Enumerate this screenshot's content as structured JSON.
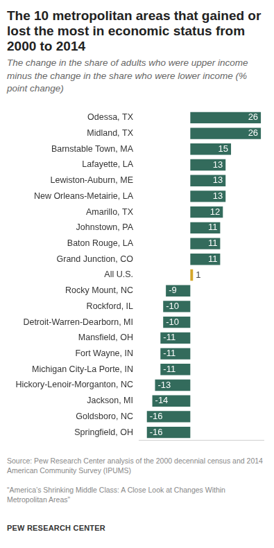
{
  "chart_data": {
    "type": "bar",
    "orientation": "horizontal",
    "title": "The 10 metropolitan areas that gained or lost the most in economic status from 2000 to 2014",
    "subtitle": "The change in the share of adults who were upper income minus the change in the share who were lower income (% point change)",
    "categories": [
      "Odessa, TX",
      "Midland, TX",
      "Barnstable Town, MA",
      "Lafayette, LA",
      "Lewiston-Auburn, ME",
      "New Orleans-Metairie, LA",
      "Amarillo, TX",
      "Johnstown, PA",
      "Baton Rouge, LA",
      "Grand Junction, CO",
      "All U.S.",
      "Rocky Mount, NC",
      "Rockford, IL",
      "Detroit-Warren-Dearborn, MI",
      "Mansfield, OH",
      "Fort Wayne, IN",
      "Michigan City-La Porte, IN",
      "Hickory-Lenoir-Morganton, NC",
      "Jackson, MI",
      "Goldsboro, NC",
      "Springfield, OH"
    ],
    "values": [
      26,
      26,
      15,
      13,
      13,
      13,
      12,
      11,
      11,
      11,
      1,
      -9,
      -10,
      -10,
      -11,
      -11,
      -11,
      -13,
      -14,
      -16,
      -16
    ],
    "colors": [
      "#336b5c",
      "#336b5c",
      "#336b5c",
      "#336b5c",
      "#336b5c",
      "#336b5c",
      "#336b5c",
      "#336b5c",
      "#336b5c",
      "#336b5c",
      "#d4a62a",
      "#336b5c",
      "#336b5c",
      "#336b5c",
      "#336b5c",
      "#336b5c",
      "#336b5c",
      "#336b5c",
      "#336b5c",
      "#336b5c",
      "#336b5c"
    ],
    "xlim": [
      -19,
      27
    ],
    "grid": false,
    "data_labels": true,
    "tick_labels": "y",
    "source": "Source: Pew Research Center analysis of the 2000 decennial census and 2014 American Community Survey (IPUMS)",
    "report": "“America’s Shrinking Middle Class: A Close Look at Changes Within Metropolitan Areas”",
    "credit": "PEW RESEARCH CENTER"
  }
}
